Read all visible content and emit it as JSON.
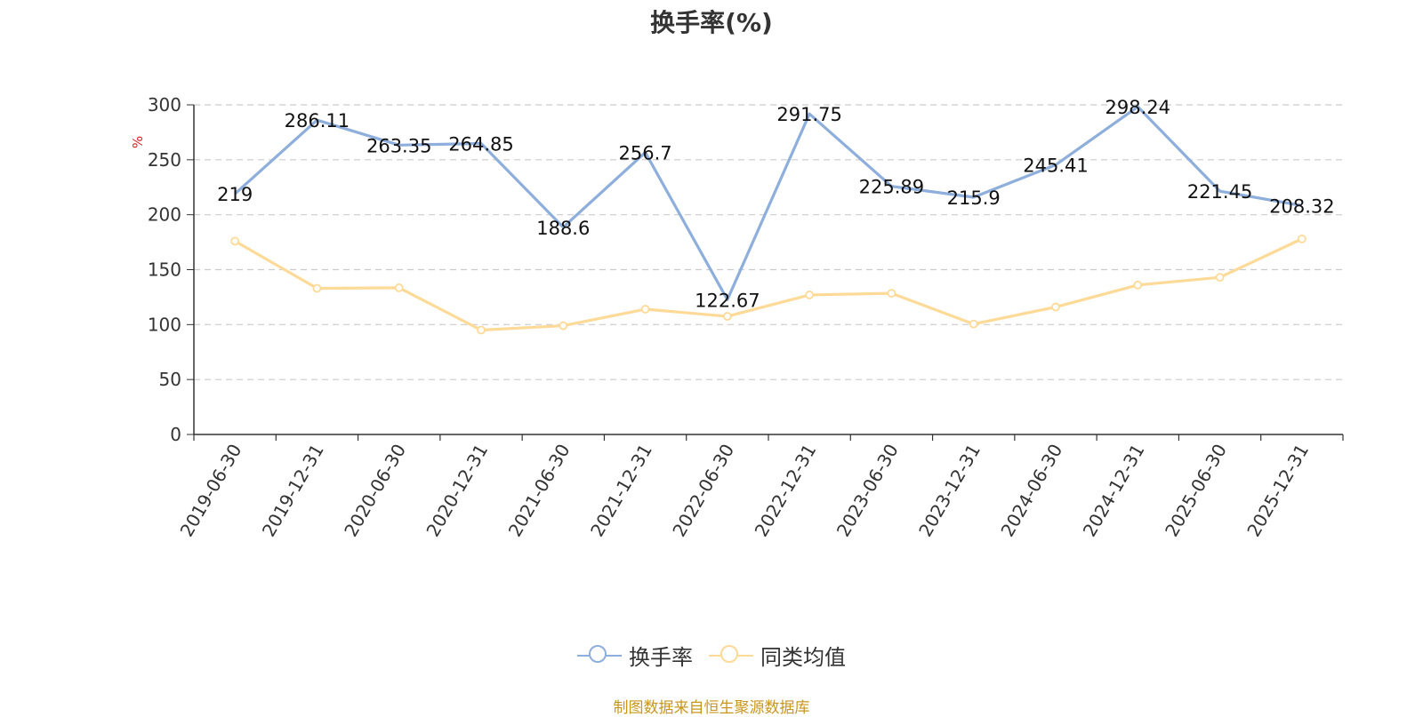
{
  "chart_data": {
    "type": "line",
    "title": "换手率(%)",
    "ylabel": "%",
    "xlabel": "",
    "ylim": [
      0,
      300
    ],
    "yticks": [
      0,
      50,
      100,
      150,
      200,
      250,
      300
    ],
    "grid": "horizontal dashed",
    "legend_position": "bottom",
    "categories": [
      "2019-06-30",
      "2019-12-31",
      "2020-06-30",
      "2020-12-31",
      "2021-06-30",
      "2021-12-31",
      "2022-06-30",
      "2022-12-31",
      "2023-06-30",
      "2023-12-31",
      "2024-06-30",
      "2024-12-31",
      "2025-06-30",
      "2025-12-31"
    ],
    "series": [
      {
        "name": "换手率",
        "color": "#8eaedc",
        "values": [
          219,
          286.11,
          263.35,
          264.85,
          188.6,
          256.7,
          122.67,
          291.75,
          225.89,
          215.9,
          245.41,
          298.24,
          221.45,
          208.32
        ],
        "data_labels": [
          "219",
          "286.11",
          "263.35",
          "264.85",
          "188.6",
          "256.7",
          "122.67",
          "291.75",
          "225.89",
          "215.9",
          "245.41",
          "298.24",
          "221.45",
          "208.32"
        ]
      },
      {
        "name": "同类均值",
        "color": "#fdda97",
        "values": [
          176,
          133,
          133.5,
          95,
          99,
          114,
          107.5,
          127,
          128.5,
          100.5,
          116,
          136,
          143,
          178
        ]
      }
    ]
  },
  "source": "制图数据来自恒生聚源数据库",
  "colors": {
    "axis": "#333333",
    "grid": "#cccccc",
    "ylabel_color": "#e02020",
    "source": "#c8961e"
  }
}
